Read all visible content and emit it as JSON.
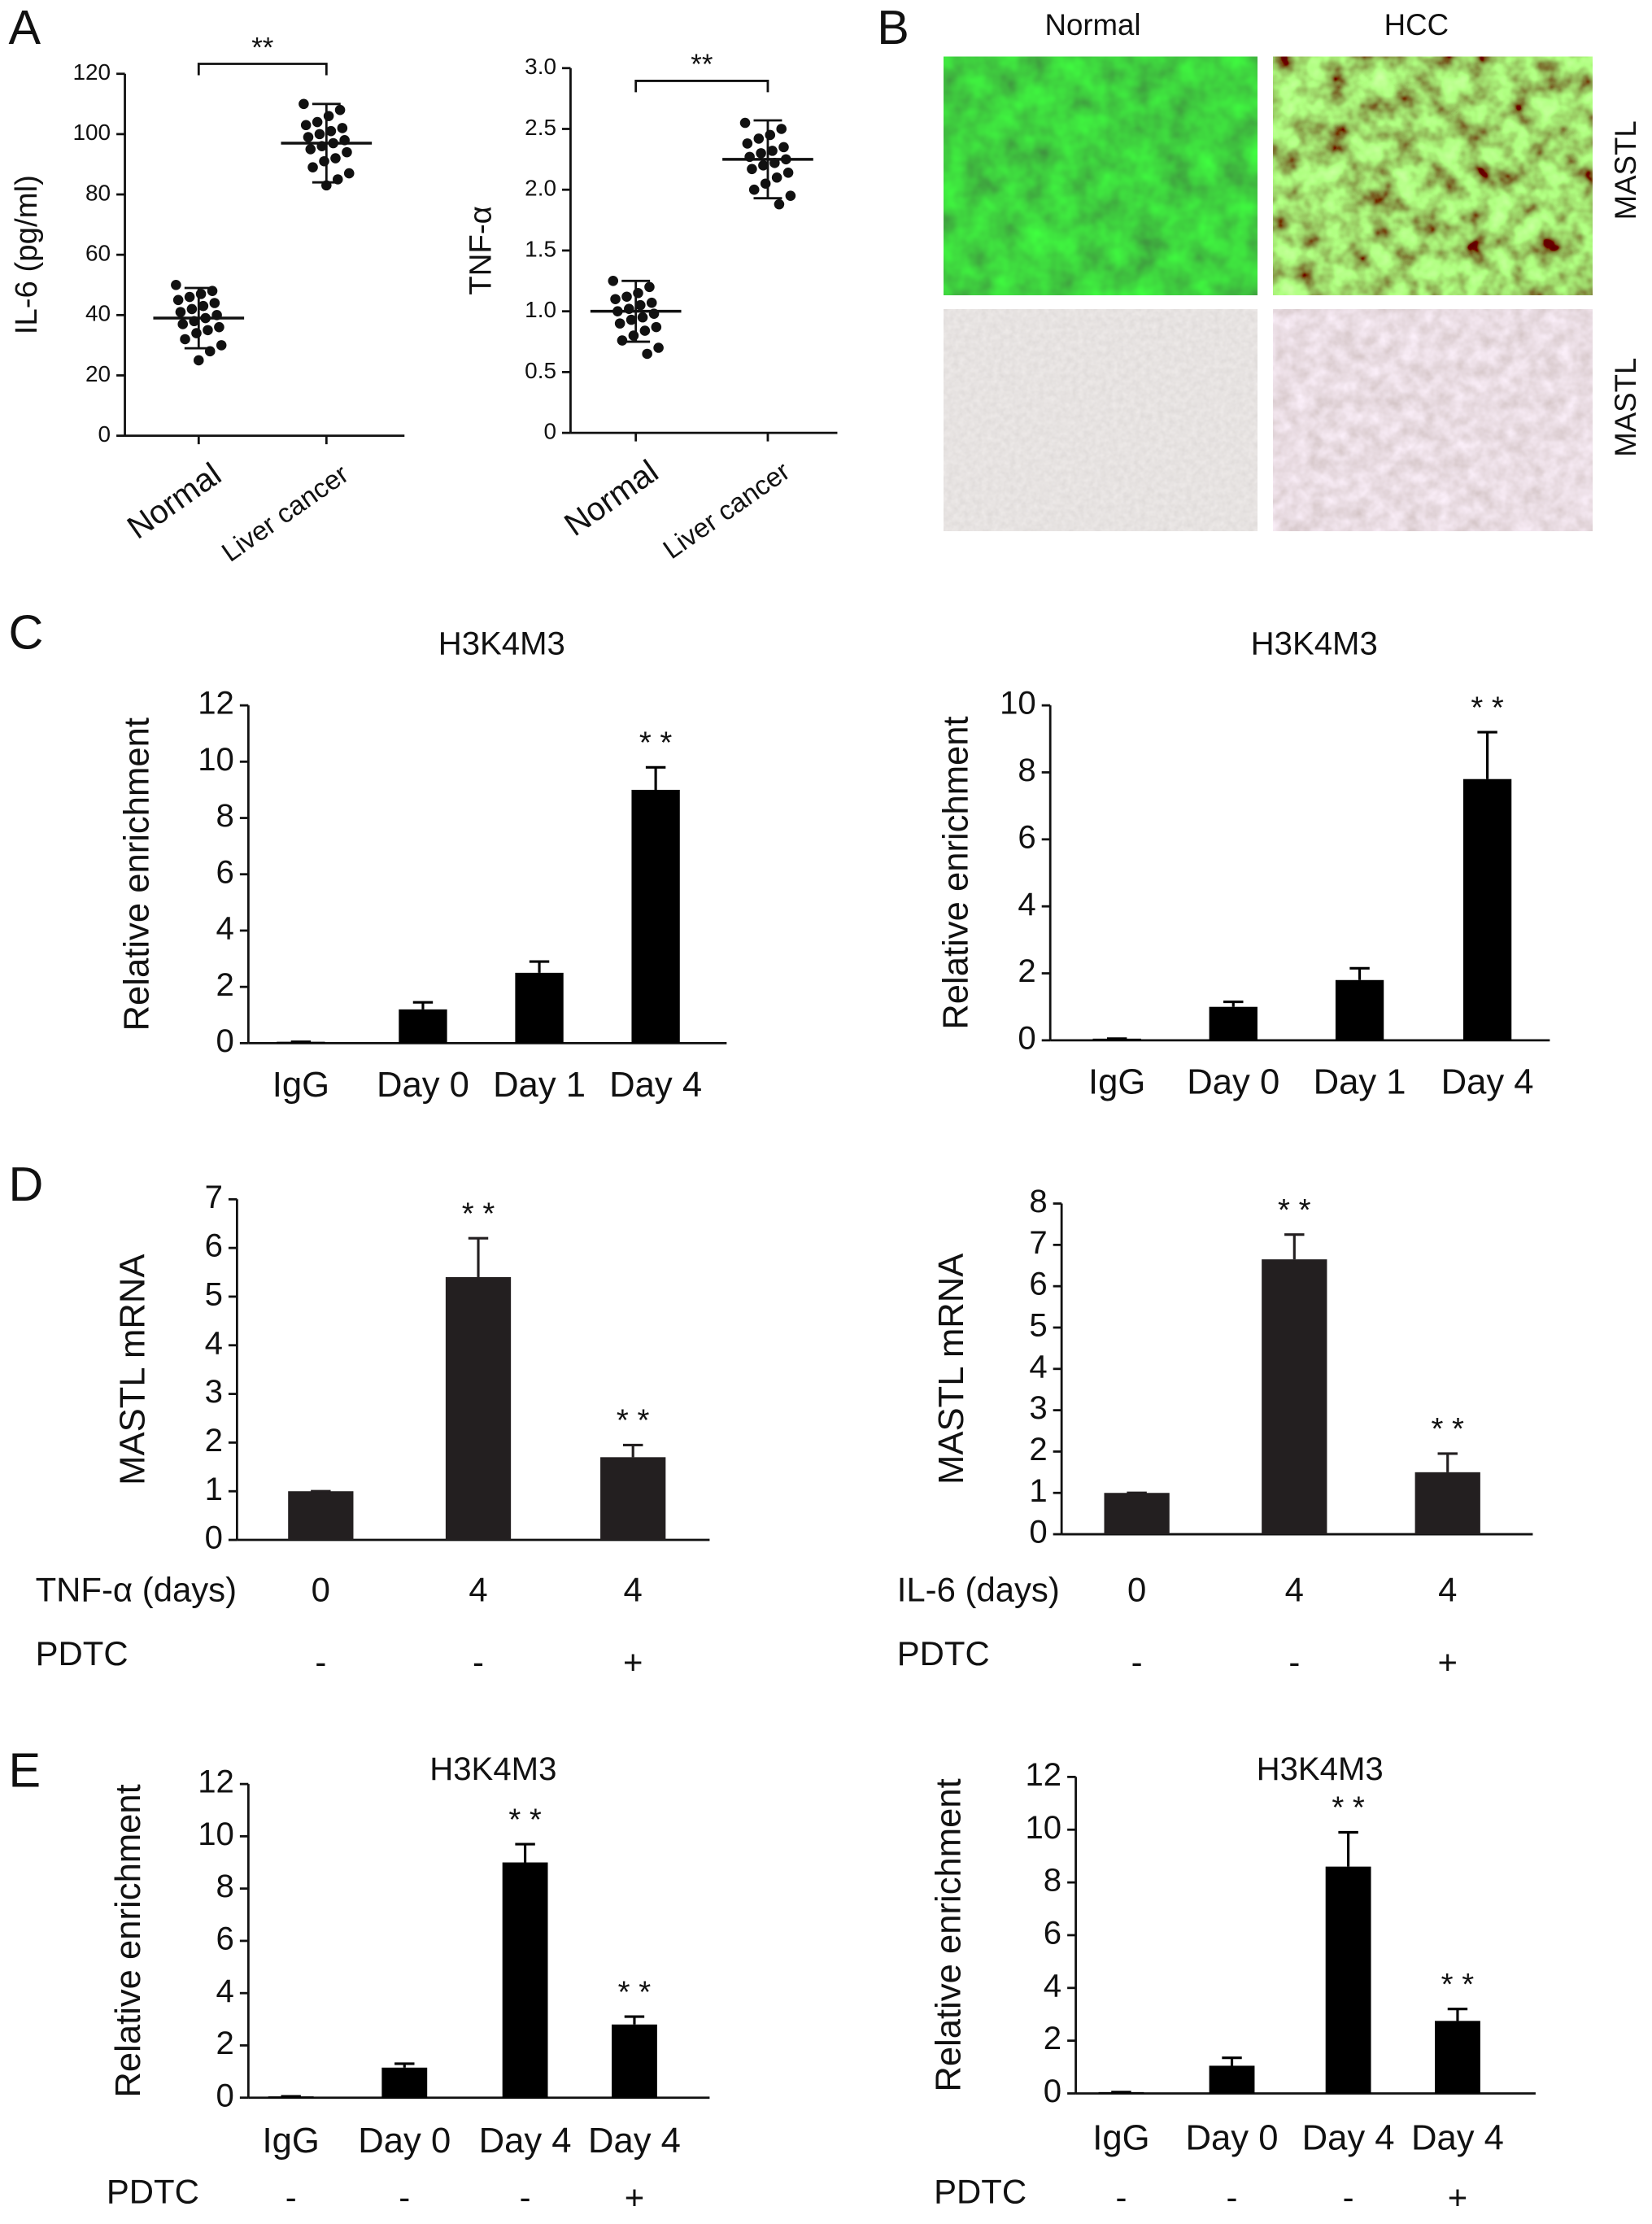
{
  "panels": {
    "labels": [
      "A",
      "B",
      "C",
      "D",
      "E"
    ],
    "images": {
      "columns": [
        "Normal",
        "HCC"
      ],
      "rows": [
        "MASTL",
        "MASTL"
      ]
    }
  },
  "chart_data": [
    {
      "type": "dotplot",
      "ylabel": "IL-6 (pg/ml)",
      "categories": [
        "Normal",
        "Liver cancer"
      ],
      "color": "#111111",
      "groups": [
        {
          "mean": 39,
          "sd": 10,
          "points": [
            50,
            48,
            47,
            46,
            45,
            44,
            43,
            42,
            41,
            40,
            39,
            38,
            37,
            36,
            35,
            34,
            32,
            30,
            28,
            25
          ]
        },
        {
          "mean": 97,
          "sd": 13,
          "points": [
            110,
            108,
            106,
            104,
            103,
            102,
            101,
            100,
            99,
            98,
            97,
            96,
            95,
            94,
            92,
            91,
            89,
            87,
            85,
            83
          ]
        }
      ],
      "ylim": [
        0,
        120
      ],
      "yticks": [
        0,
        20,
        40,
        60,
        80,
        100,
        120
      ],
      "significance": "**"
    },
    {
      "type": "dotplot",
      "ylabel": "TNF-α",
      "categories": [
        "Normal",
        "Liver cancer"
      ],
      "color": "#111111",
      "groups": [
        {
          "mean": 1.0,
          "sd": 0.25,
          "points": [
            1.25,
            1.2,
            1.15,
            1.12,
            1.1,
            1.07,
            1.05,
            1.02,
            1.0,
            0.98,
            0.95,
            0.93,
            0.9,
            0.87,
            0.84,
            0.8,
            0.76,
            0.7,
            0.65
          ]
        },
        {
          "mean": 2.25,
          "sd": 0.32,
          "points": [
            2.55,
            2.5,
            2.45,
            2.42,
            2.38,
            2.35,
            2.32,
            2.3,
            2.27,
            2.25,
            2.22,
            2.2,
            2.17,
            2.14,
            2.1,
            2.05,
            2.0,
            1.95,
            1.88
          ]
        }
      ],
      "ylim": [
        0,
        3
      ],
      "yticks": [
        0,
        0.5,
        {
          "value": 1,
          "label": "1.0"
        },
        1.5,
        {
          "value": 2,
          "label": "2.0"
        },
        2.5,
        {
          "value": 3,
          "label": "3.0"
        }
      ],
      "significance": "**"
    },
    {
      "type": "bar",
      "title": "H3K4M3",
      "ylabel": "Relative enrichment",
      "color": "#000000",
      "categories": [
        "IgG",
        "Day 0",
        "Day 1",
        "Day 4"
      ],
      "values": [
        0.05,
        1.2,
        2.5,
        9.0
      ],
      "errors": [
        0,
        0.25,
        0.4,
        0.8
      ],
      "ylim": [
        0,
        12
      ],
      "yticks": [
        0,
        2,
        4,
        6,
        8,
        10,
        12
      ],
      "annotations": [
        {
          "index": 3,
          "text": "* *"
        }
      ]
    },
    {
      "type": "bar",
      "title": "H3K4M3",
      "ylabel": "Relative enrichment",
      "color": "#000000",
      "categories": [
        "IgG",
        "Day 0",
        "Day 1",
        "Day 4"
      ],
      "values": [
        0.05,
        1.0,
        1.8,
        7.8
      ],
      "errors": [
        0,
        0.15,
        0.35,
        1.4
      ],
      "ylim": [
        0,
        10
      ],
      "yticks": [
        0,
        2,
        4,
        6,
        8,
        10
      ],
      "annotations": [
        {
          "index": 3,
          "text": "* *"
        }
      ]
    },
    {
      "type": "bar",
      "ylabel": "MASTL mRNA",
      "color": "#231f20",
      "rows": [
        {
          "label": "TNF-α (days)",
          "values": [
            "0",
            "4",
            "4"
          ]
        },
        {
          "label": "PDTC",
          "values": [
            "-",
            "-",
            "+"
          ]
        }
      ],
      "values": [
        1.0,
        5.4,
        1.7
      ],
      "errors": [
        0,
        0.8,
        0.25
      ],
      "ylim": [
        0,
        7
      ],
      "yticks": [
        0,
        1,
        2,
        3,
        4,
        5,
        6,
        7
      ],
      "annotations": [
        {
          "index": 1,
          "text": "* *"
        },
        {
          "index": 2,
          "text": "* *"
        }
      ]
    },
    {
      "type": "bar",
      "ylabel": "MASTL mRNA",
      "color": "#231f20",
      "rows": [
        {
          "label": "IL-6 (days)",
          "values": [
            "0",
            "4",
            "4"
          ]
        },
        {
          "label": "PDTC",
          "values": [
            "-",
            "-",
            "+"
          ]
        }
      ],
      "values": [
        1.0,
        6.65,
        1.5
      ],
      "errors": [
        0,
        0.6,
        0.45
      ],
      "ylim": [
        0,
        8
      ],
      "yticks": [
        0,
        1,
        2,
        3,
        4,
        5,
        6,
        7,
        8
      ],
      "annotations": [
        {
          "index": 1,
          "text": "* *"
        },
        {
          "index": 2,
          "text": "* *"
        }
      ]
    },
    {
      "type": "bar",
      "title": "H3K4M3",
      "ylabel": "Relative enrichment",
      "color": "#000000",
      "categories": [
        "IgG",
        "Day 0",
        "Day 4",
        "Day 4"
      ],
      "rows": [
        {
          "label": "PDTC",
          "values": [
            "-",
            "-",
            "-",
            "+"
          ]
        }
      ],
      "values": [
        0.05,
        1.15,
        9.0,
        2.8
      ],
      "errors": [
        0,
        0.15,
        0.7,
        0.3
      ],
      "ylim": [
        0,
        12
      ],
      "yticks": [
        0,
        2,
        4,
        6,
        8,
        10,
        12
      ],
      "annotations": [
        {
          "index": 2,
          "text": "* *"
        },
        {
          "index": 3,
          "text": "* *"
        }
      ]
    },
    {
      "type": "bar",
      "title": "H3K4M3",
      "ylabel": "Relative enrichment",
      "color": "#000000",
      "categories": [
        "IgG",
        "Day 0",
        "Day 4",
        "Day 4"
      ],
      "rows": [
        {
          "label": "PDTC",
          "values": [
            "-",
            "-",
            "-",
            "+"
          ]
        }
      ],
      "values": [
        0.05,
        1.05,
        8.6,
        2.75
      ],
      "errors": [
        0,
        0.3,
        1.3,
        0.45
      ],
      "ylim": [
        0,
        12
      ],
      "yticks": [
        0,
        2,
        4,
        6,
        8,
        10,
        12
      ],
      "annotations": [
        {
          "index": 2,
          "text": "* *"
        },
        {
          "index": 3,
          "text": "* *"
        }
      ]
    }
  ]
}
